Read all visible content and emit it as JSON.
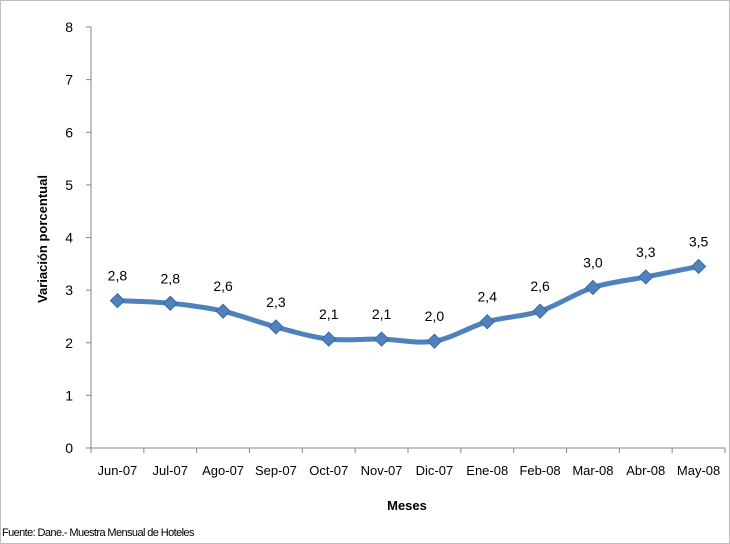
{
  "chart_data": {
    "type": "line",
    "categories": [
      "Jun-07",
      "Jul-07",
      "Ago-07",
      "Sep-07",
      "Oct-07",
      "Nov-07",
      "Dic-07",
      "Ene-08",
      "Feb-08",
      "Mar-08",
      "Abr-08",
      "May-08"
    ],
    "series": [
      {
        "values": [
          2.8,
          2.75,
          2.6,
          2.3,
          2.07,
          2.07,
          2.03,
          2.4,
          2.6,
          3.05,
          3.25,
          3.45
        ],
        "labels": [
          "2,8",
          "2,8",
          "2,6",
          "2,3",
          "2,1",
          "2,1",
          "2,0",
          "2,4",
          "2,6",
          "3,0",
          "3,3",
          "3,5"
        ],
        "color": "#4f81bd"
      }
    ],
    "xlabel": "Meses",
    "ylabel": "Variación porcentual",
    "ylim": [
      0,
      8
    ],
    "yticks": [
      "0",
      "1",
      "2",
      "3",
      "4",
      "5",
      "6",
      "7",
      "8"
    ],
    "grid": false,
    "legend": "none"
  },
  "source_note": "Fuente: Dane.- Muestra Mensual de Hoteles"
}
